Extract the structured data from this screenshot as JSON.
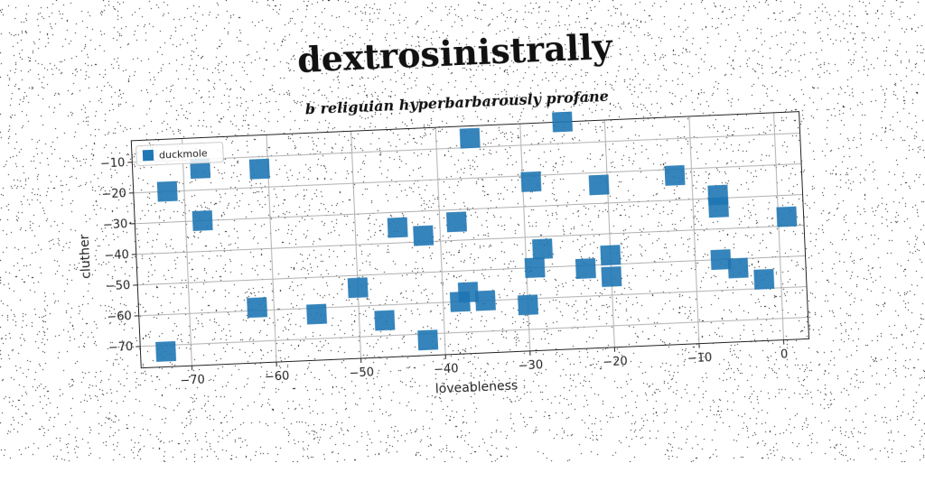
{
  "chart_data": {
    "type": "scatter",
    "title": "dextrosinistrally",
    "subtitle": "b religuian hyperbarbarously profane",
    "xlabel": "loveableness",
    "ylabel": "cluther",
    "xlim": [
      -76,
      3
    ],
    "ylim": [
      -77,
      -3
    ],
    "xticks": [
      -70,
      -60,
      -50,
      -40,
      -30,
      -20,
      -10,
      0
    ],
    "yticks": [
      -10,
      -20,
      -30,
      -40,
      -50,
      -60,
      -70
    ],
    "grid": true,
    "legend_position": "top-left",
    "series": [
      {
        "name": "duckmole",
        "color": "#1f77b4",
        "marker": "square",
        "points": [
          [
            -72,
            -20
          ],
          [
            -68,
            -13
          ],
          [
            -68,
            -30
          ],
          [
            -61,
            -14
          ],
          [
            -62,
            -59
          ],
          [
            -55,
            -62
          ],
          [
            -50,
            -54
          ],
          [
            -47,
            -65
          ],
          [
            -42,
            -72
          ],
          [
            -45,
            -35
          ],
          [
            -42,
            -38
          ],
          [
            -38,
            -34
          ],
          [
            -36,
            -7
          ],
          [
            -37,
            -57
          ],
          [
            -38,
            -60
          ],
          [
            -35,
            -60
          ],
          [
            -30,
            -62
          ],
          [
            -29,
            -22
          ],
          [
            -29,
            -50
          ],
          [
            -28,
            -44
          ],
          [
            -25,
            -3
          ],
          [
            -23,
            -51
          ],
          [
            -21,
            -24
          ],
          [
            -20,
            -47
          ],
          [
            -20,
            -54
          ],
          [
            -12,
            -22
          ],
          [
            -7,
            -29
          ],
          [
            -7,
            -33
          ],
          [
            -7,
            -50
          ],
          [
            -5,
            -53
          ],
          [
            -2,
            -57
          ],
          [
            1,
            -37
          ],
          [
            -73,
            -72
          ]
        ]
      }
    ]
  }
}
